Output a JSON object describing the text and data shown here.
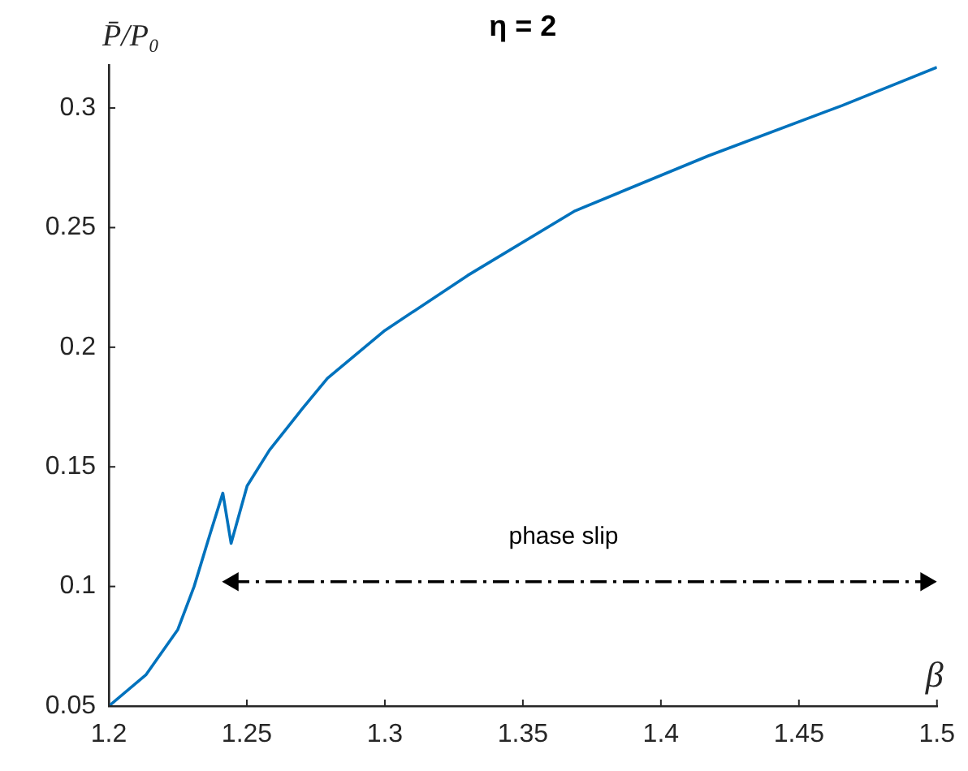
{
  "chart_data": {
    "type": "line",
    "title": "η = 2",
    "xlabel": "β",
    "ylabel": "P̄/P₀",
    "x": [
      1.2,
      1.2134,
      1.225,
      1.2309,
      1.2367,
      1.2413,
      1.2443,
      1.2501,
      1.2582,
      1.2699,
      1.2792,
      1.3,
      1.33,
      1.3689,
      1.4172,
      1.4656,
      1.5
    ],
    "series": [
      {
        "color": "#0072bd",
        "values": [
          0.05,
          0.063,
          0.082,
          0.1,
          0.122,
          0.139,
          0.118,
          0.142,
          0.157,
          0.174,
          0.187,
          0.207,
          0.23,
          0.257,
          0.28,
          0.301,
          0.317
        ]
      },
      {
        "color": "#000000",
        "x": [
          1.245,
          1.496
        ],
        "values": [
          0.102,
          0.102
        ],
        "marker": "triangle",
        "line_style": "dashed"
      }
    ],
    "xlim": [
      1.2,
      1.5
    ],
    "xticks": [
      1.2,
      1.25,
      1.3,
      1.35,
      1.4,
      1.45,
      1.5
    ],
    "ylim": [
      0.05,
      0.318
    ],
    "yticks": [
      0.05,
      0.1,
      0.15,
      0.2,
      0.25,
      0.3
    ],
    "grid": false,
    "legend": false,
    "marker": "none",
    "line_style": "solid",
    "annotations": [
      "phase slip"
    ]
  }
}
